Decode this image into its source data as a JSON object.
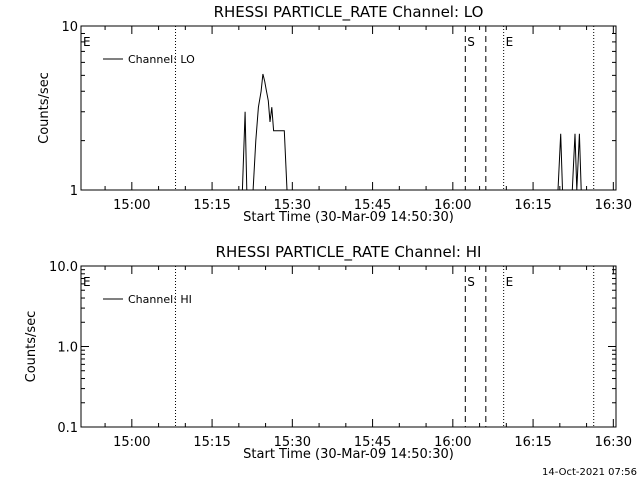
{
  "chart_data": [
    {
      "type": "line",
      "title": "RHESSI PARTICLE_RATE Channel: LO",
      "xlabel": "Start Time (30-Mar-09 14:50:30)",
      "ylabel": "Counts/sec",
      "xlim": [
        "14:50:30",
        "16:30:30"
      ],
      "ylim": [
        1,
        10
      ],
      "yscale": "log",
      "xticks": [
        "15:00",
        "15:15",
        "15:30",
        "15:45",
        "16:00",
        "16:15",
        "16:30"
      ],
      "yticks": [
        "1",
        "10"
      ],
      "legend": {
        "placement": "top-left",
        "entries": [
          "Channel: LO"
        ]
      },
      "series": [
        {
          "name": "Channel: LO",
          "points": [
            [
              "15:20:15",
              1
            ],
            [
              "15:20:40",
              1
            ],
            [
              "15:21:10",
              3.0
            ],
            [
              "15:21:30",
              1
            ],
            [
              "15:22:40",
              1
            ],
            [
              "15:23:10",
              2.0
            ],
            [
              "15:23:40",
              3.2
            ],
            [
              "15:24:10",
              4.0
            ],
            [
              "15:24:30",
              5.1
            ],
            [
              "15:24:50",
              4.6
            ],
            [
              "15:25:10",
              4.0
            ],
            [
              "15:25:30",
              3.5
            ],
            [
              "15:25:50",
              2.6
            ],
            [
              "15:26:10",
              3.2
            ],
            [
              "15:26:30",
              2.3
            ],
            [
              "15:27:00",
              2.3
            ],
            [
              "15:28:30",
              2.3
            ],
            [
              "15:29:00",
              1
            ],
            [
              "16:19:40",
              1
            ],
            [
              "16:20:10",
              2.2
            ],
            [
              "16:20:30",
              1
            ],
            [
              "16:22:20",
              1
            ],
            [
              "16:22:50",
              2.2
            ],
            [
              "16:23:10",
              1
            ],
            [
              "16:23:40",
              2.2
            ],
            [
              "16:24:00",
              1
            ]
          ]
        }
      ],
      "vertical_markers": [
        {
          "time": "14:50:30",
          "style": "dotted",
          "label": "E"
        },
        {
          "time": "15:08:10",
          "style": "dotted",
          "label": ""
        },
        {
          "time": "16:02:20",
          "style": "dashed",
          "label": "S"
        },
        {
          "time": "16:06:10",
          "style": "dashed",
          "label": ""
        },
        {
          "time": "16:09:30",
          "style": "dotted",
          "label": "E"
        },
        {
          "time": "16:26:20",
          "style": "dotted",
          "label": ""
        }
      ]
    },
    {
      "type": "line",
      "title": "RHESSI PARTICLE_RATE Channel: HI",
      "xlabel": "Start Time (30-Mar-09 14:50:30)",
      "ylabel": "Counts/sec",
      "xlim": [
        "14:50:30",
        "16:30:30"
      ],
      "ylim": [
        0.1,
        10
      ],
      "yscale": "log",
      "xticks": [
        "15:00",
        "15:15",
        "15:30",
        "15:45",
        "16:00",
        "16:15",
        "16:30"
      ],
      "yticks": [
        "0.1",
        "1.0",
        "10.0"
      ],
      "legend": {
        "placement": "top-left",
        "entries": [
          "Channel: HI"
        ]
      },
      "series": [
        {
          "name": "Channel: HI",
          "points": []
        }
      ],
      "vertical_markers": [
        {
          "time": "14:50:30",
          "style": "dotted",
          "label": "E"
        },
        {
          "time": "15:08:10",
          "style": "dotted",
          "label": ""
        },
        {
          "time": "16:02:20",
          "style": "dashed",
          "label": "S"
        },
        {
          "time": "16:06:10",
          "style": "dashed",
          "label": ""
        },
        {
          "time": "16:09:30",
          "style": "dotted",
          "label": "E"
        },
        {
          "time": "16:26:20",
          "style": "dotted",
          "label": ""
        }
      ]
    }
  ],
  "footer": {
    "timestamp": "14-Oct-2021 07:56"
  }
}
